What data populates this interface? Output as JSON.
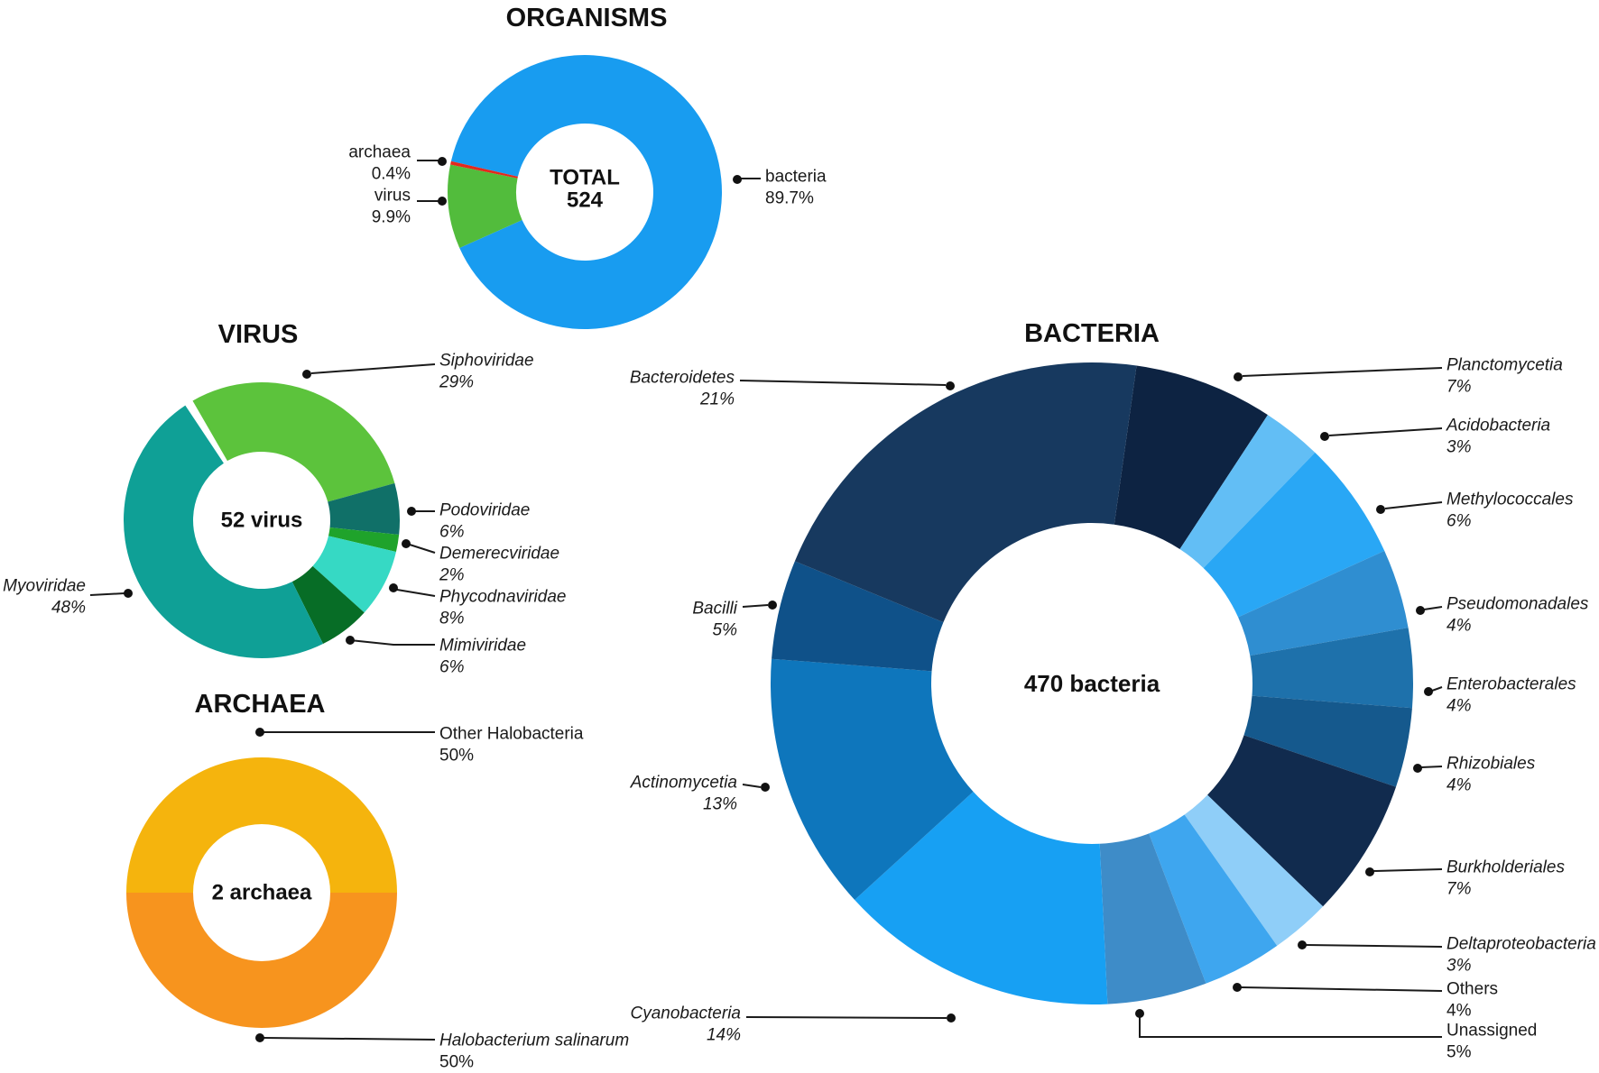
{
  "figure": {
    "background_color": "#ffffff",
    "description": "Four donut charts summarizing organism composition"
  },
  "chart_data": [
    {
      "id": "organisms",
      "type": "pie",
      "title": "ORGANISMS",
      "center_label": [
        "TOTAL",
        "524"
      ],
      "legend_position": "callouts",
      "slices": [
        {
          "label": "bacteria",
          "pct_label": "89.7%",
          "value": 89.7,
          "color": "#189CF0",
          "italic": false,
          "pct_italic": false
        },
        {
          "label": "virus",
          "pct_label": "9.9%",
          "value": 9.9,
          "color": "#52BC3C",
          "italic": false,
          "pct_italic": false
        },
        {
          "label": "archaea",
          "pct_label": "0.4%",
          "value": 0.4,
          "color": "#E3291D",
          "italic": false,
          "pct_italic": false
        }
      ]
    },
    {
      "id": "virus",
      "type": "pie",
      "title": "VIRUS",
      "center_label": [
        "52 virus"
      ],
      "legend_position": "callouts",
      "slices": [
        {
          "label": "Siphoviridae",
          "pct_label": "29%",
          "value": 29,
          "color": "#5CC33C",
          "italic": true,
          "pct_italic": true
        },
        {
          "label": "Podoviridae",
          "pct_label": "6%",
          "value": 6,
          "color": "#107068",
          "italic": true,
          "pct_italic": true
        },
        {
          "label": "Demerecviridae",
          "pct_label": "2%",
          "value": 2,
          "color": "#1FA32B",
          "italic": true,
          "pct_italic": true
        },
        {
          "label": "Phycodnaviridae",
          "pct_label": "8%",
          "value": 8,
          "color": "#36D9C4",
          "italic": true,
          "pct_italic": true
        },
        {
          "label": "Mimiviridae",
          "pct_label": "6%",
          "value": 6,
          "color": "#076D26",
          "italic": true,
          "pct_italic": true
        },
        {
          "label": "Myoviridae",
          "pct_label": "48%",
          "value": 48,
          "color": "#0FA096",
          "italic": true,
          "pct_italic": true
        }
      ]
    },
    {
      "id": "archaea",
      "type": "pie",
      "title": "ARCHAEA",
      "center_label": [
        "2 archaea"
      ],
      "legend_position": "callouts",
      "slices": [
        {
          "label": "Other Halobacteria",
          "pct_label": "50%",
          "value": 50,
          "color": "#F5B40D",
          "italic": false,
          "pct_italic": false
        },
        {
          "label": "Halobacterium salinarum",
          "pct_label": "50%",
          "value": 50,
          "color": "#F7941E",
          "italic": true,
          "pct_italic": false
        }
      ]
    },
    {
      "id": "bacteria",
      "type": "pie",
      "title": "BACTERIA",
      "center_label": [
        "470 bacteria"
      ],
      "legend_position": "callouts",
      "slices": [
        {
          "label": "Planctomycetia",
          "pct_label": "7%",
          "value": 7,
          "color": "#0D2342",
          "italic": true,
          "pct_italic": true
        },
        {
          "label": "Acidobacteria",
          "pct_label": "3%",
          "value": 3,
          "color": "#62BEF5",
          "italic": true,
          "pct_italic": true
        },
        {
          "label": "Methylococcales",
          "pct_label": "6%",
          "value": 6,
          "color": "#29A7F5",
          "italic": true,
          "pct_italic": true
        },
        {
          "label": "Pseudomonadales",
          "pct_label": "4%",
          "value": 4,
          "color": "#2F8ED1",
          "italic": true,
          "pct_italic": true
        },
        {
          "label": "Enterobacterales",
          "pct_label": "4%",
          "value": 4,
          "color": "#1E71AB",
          "italic": true,
          "pct_italic": true
        },
        {
          "label": "Rhizobiales",
          "pct_label": "4%",
          "value": 4,
          "color": "#15598D",
          "italic": true,
          "pct_italic": true
        },
        {
          "label": "Burkholderiales",
          "pct_label": "7%",
          "value": 7,
          "color": "#112B4E",
          "italic": true,
          "pct_italic": true
        },
        {
          "label": "Deltaproteobacteria",
          "pct_label": "3%",
          "value": 3,
          "color": "#8FCEF8",
          "italic": true,
          "pct_italic": true
        },
        {
          "label": "Others",
          "pct_label": "4%",
          "value": 4,
          "color": "#3EA6EF",
          "italic": false,
          "pct_italic": false
        },
        {
          "label": "Unassigned",
          "pct_label": "5%",
          "value": 5,
          "color": "#3E8CC8",
          "italic": false,
          "pct_italic": false
        },
        {
          "label": "Cyanobacteria",
          "pct_label": "14%",
          "value": 14,
          "color": "#17A0F3",
          "italic": true,
          "pct_italic": true
        },
        {
          "label": "Actinomycetia",
          "pct_label": "13%",
          "value": 13,
          "color": "#0E76BC",
          "italic": true,
          "pct_italic": true
        },
        {
          "label": "Bacilli",
          "pct_label": "5%",
          "value": 5,
          "color": "#0F5189",
          "italic": true,
          "pct_italic": true
        },
        {
          "label": "Bacteroidetes",
          "pct_label": "21%",
          "value": 21,
          "color": "#17395F",
          "italic": true,
          "pct_italic": true
        }
      ]
    }
  ]
}
